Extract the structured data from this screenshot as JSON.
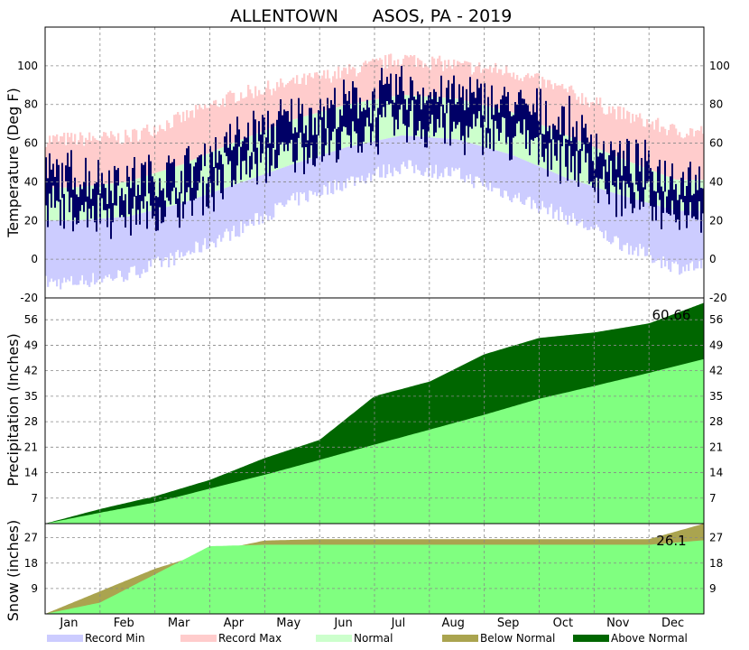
{
  "chart_data": {
    "type": "line",
    "title_left": "ALLENTOWN",
    "title_right": "ASOS, PA - 2019",
    "months": [
      "Jan",
      "Feb",
      "Mar",
      "Apr",
      "May",
      "Jun",
      "Jul",
      "Aug",
      "Sep",
      "Oct",
      "Nov",
      "Dec"
    ],
    "legend": [
      {
        "label": "Record Min",
        "color": "#ccccff"
      },
      {
        "label": "Record Max",
        "color": "#ffcccc"
      },
      {
        "label": "Normal",
        "color": "#ccffcc"
      },
      {
        "label": "Below Normal",
        "color": "#aaa44f"
      },
      {
        "label": "Above Normal",
        "color": "#006600"
      }
    ],
    "colors": {
      "record_min": "#ccccff",
      "record_max": "#ffcccc",
      "normal": "#ccffcc",
      "observed": "#000066",
      "precip_normal": "#80ff80",
      "above_normal": "#006600",
      "below_normal": "#aaa44f"
    },
    "panels": [
      {
        "id": "temperature",
        "ylabel": "Temperature (Deg F)",
        "ylim": [
          -20,
          120
        ],
        "ticks": [
          -20,
          0,
          20,
          40,
          60,
          80,
          100
        ],
        "tick_labels": [
          "-20",
          "0",
          "20",
          "40",
          "60",
          "80",
          "100"
        ],
        "series": {
          "months_mid": [
            1,
            2,
            3,
            4,
            5,
            6,
            7,
            8,
            9,
            10,
            11,
            12
          ],
          "record_max": [
            62,
            63,
            73,
            85,
            91,
            97,
            104,
            100,
            97,
            87,
            75,
            66
          ],
          "normal_high": [
            37,
            40,
            49,
            61,
            72,
            80,
            85,
            83,
            76,
            64,
            52,
            41
          ],
          "normal_low": [
            20,
            22,
            29,
            39,
            49,
            58,
            64,
            62,
            54,
            42,
            33,
            25
          ],
          "record_min": [
            -12,
            -8,
            2,
            15,
            30,
            40,
            48,
            44,
            33,
            22,
            8,
            -4
          ],
          "observed_high": [
            48,
            50,
            52,
            70,
            80,
            85,
            94,
            89,
            88,
            78,
            55,
            45
          ],
          "observed_low": [
            22,
            15,
            20,
            38,
            48,
            57,
            65,
            62,
            55,
            45,
            28,
            24
          ]
        }
      },
      {
        "id": "precipitation",
        "ylabel": "Precipitation (Inches)",
        "ylim": [
          0,
          62
        ],
        "ticks": [
          7,
          14,
          21,
          28,
          35,
          42,
          49,
          56
        ],
        "tick_labels": [
          "7",
          "14",
          "21",
          "28",
          "35",
          "42",
          "49",
          "56"
        ],
        "annotation": "60.66",
        "series": {
          "months_end": [
            1,
            2,
            3,
            4,
            5,
            6,
            7,
            8,
            9,
            10,
            11,
            12
          ],
          "observed_cumulative": [
            4.0,
            7.5,
            12.0,
            18.0,
            23.0,
            35.0,
            39.0,
            46.5,
            51.0,
            52.5,
            55.0,
            60.66
          ],
          "normal_cumulative": [
            3.0,
            5.8,
            9.6,
            13.4,
            17.5,
            21.7,
            25.8,
            29.9,
            34.3,
            37.8,
            41.4,
            45.2
          ]
        }
      },
      {
        "id": "snow",
        "ylabel": "Snow (inches)",
        "ylim": [
          0,
          32
        ],
        "ticks": [
          9,
          18,
          27
        ],
        "tick_labels": [
          "9",
          "18",
          "27"
        ],
        "annotation": "26.1",
        "series": {
          "months_end": [
            1,
            2,
            3,
            4,
            5,
            6,
            7,
            8,
            9,
            10,
            11,
            12
          ],
          "observed_cumulative": [
            4,
            14,
            24,
            24.5,
            24.5,
            24.5,
            24.5,
            24.5,
            24.5,
            24.5,
            24.5,
            26.1
          ],
          "normal_cumulative": [
            8,
            16,
            22,
            26,
            26.5,
            26.5,
            26.5,
            26.5,
            26.5,
            26.5,
            26.5,
            32
          ]
        }
      }
    ]
  }
}
